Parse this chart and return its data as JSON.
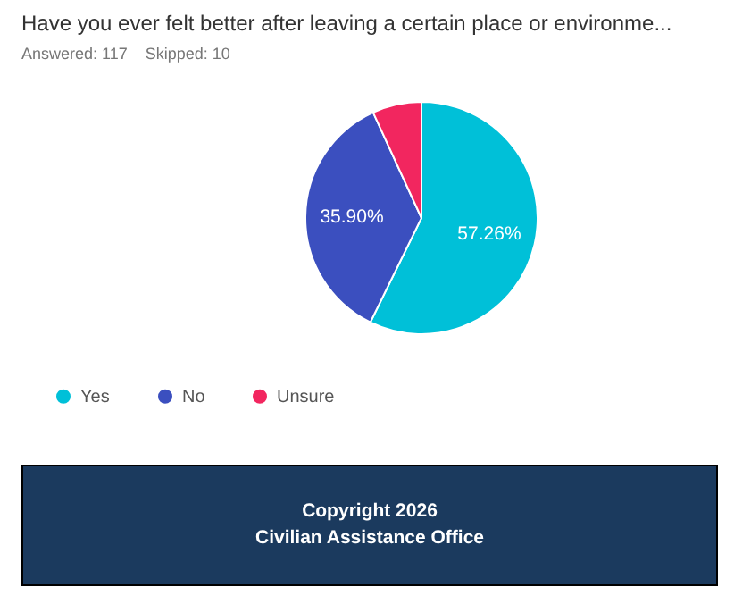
{
  "chart_data": {
    "type": "pie",
    "title": "Have you ever felt better after leaving a certain place or environme...",
    "subtitle": "Answered: 117    Skipped: 10",
    "categories": [
      "Yes",
      "No",
      "Unsure"
    ],
    "values": [
      57.26,
      35.9,
      6.84
    ],
    "colors": [
      "#00c0d8",
      "#3b4fbf",
      "#f2265f"
    ],
    "value_labels": [
      "57.26%",
      "35.90%",
      null
    ],
    "legend": "bottom left",
    "annotations": [
      "Copyright 2026",
      "Civilian Assistance Office"
    ]
  }
}
